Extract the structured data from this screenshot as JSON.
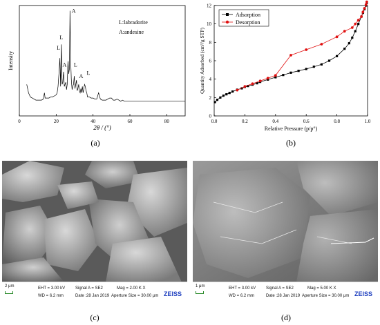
{
  "panel_a": {
    "sublabel": "(a)",
    "legend_line1": "L:labradorite",
    "legend_line2": "A:andesine",
    "peak_labels": [
      "A",
      "L",
      "L",
      "A",
      "L",
      "A",
      "L"
    ]
  },
  "panel_b": {
    "sublabel": "(b)"
  },
  "panel_c": {
    "sublabel": "(c)",
    "scale": "2 μm",
    "eht": "EHT = 3.00 kV",
    "wd": "WD = 6.2 mm",
    "signal": "Signal A = SE2",
    "date": "Date :28 Jan 2019",
    "mag": "Mag = 2.00 K X",
    "aperture": "Aperture Size = 30.00 μm",
    "brand": "ZEISS"
  },
  "panel_d": {
    "sublabel": "(d)",
    "scale": "1 μm",
    "eht": "EHT = 3.00 kV",
    "wd": "WD = 6.2 mm",
    "signal": "Signal A = SE2",
    "date": "Date :28 Jan 2019",
    "mag": "Mag = 5.00 K X",
    "aperture": "Aperture Size = 30.00 μm",
    "brand": "ZEISS"
  },
  "chart_data": [
    {
      "type": "line",
      "title": "",
      "xlabel": "2θ / (°)",
      "ylabel": "Intensity",
      "xlim": [
        0,
        90
      ],
      "x_ticks": [
        "0",
        "20",
        "40",
        "60",
        "80"
      ],
      "grid": false,
      "legend_position": "top-right",
      "series": [
        {
          "x": [
            4,
            5,
            6,
            7,
            8,
            9,
            10,
            11,
            12,
            13,
            13.6,
            14,
            15,
            16,
            17,
            18,
            19,
            20,
            20.5,
            21,
            21.5,
            22,
            22.4,
            22.8,
            23.2,
            23.6,
            24,
            24.4,
            24.8,
            25.2,
            25.6,
            26,
            26.4,
            26.8,
            27.2,
            27.5,
            27.8,
            28.2,
            28.6,
            29,
            29.4,
            29.8,
            30.2,
            30.6,
            31,
            31.4,
            31.8,
            32.2,
            32.6,
            33,
            33.4,
            33.8,
            34.2,
            34.6,
            35,
            35.4,
            35.8,
            36.2,
            36.6,
            37,
            38,
            39,
            40,
            41,
            42,
            43,
            44,
            45,
            46,
            47,
            48,
            49,
            50,
            51,
            52,
            53,
            54,
            55,
            56,
            57,
            58,
            59,
            60,
            62,
            64,
            66,
            68,
            70,
            72,
            74,
            76,
            78,
            80,
            82,
            84,
            86,
            88,
            90
          ],
          "y": [
            30,
            22,
            18,
            17,
            16,
            15,
            15,
            15,
            15,
            16,
            22,
            17,
            17,
            17,
            18,
            18,
            19,
            20,
            22,
            28,
            40,
            55,
            28,
            68,
            30,
            32,
            42,
            28,
            30,
            32,
            25,
            30,
            52,
            40,
            45,
            100,
            58,
            35,
            25,
            28,
            30,
            38,
            26,
            30,
            34,
            24,
            26,
            30,
            24,
            22,
            26,
            22,
            28,
            22,
            26,
            30,
            28,
            24,
            22,
            18,
            18,
            17,
            17,
            16,
            16,
            22,
            16,
            15,
            15,
            15,
            16,
            17,
            17,
            15,
            15,
            16,
            15,
            14,
            15,
            14,
            14,
            14,
            14,
            14,
            14,
            14,
            14,
            14,
            14,
            14,
            14,
            14,
            14,
            14,
            14,
            14,
            14,
            14
          ]
        }
      ]
    },
    {
      "type": "line",
      "title": "",
      "xlabel": "Relative Pressure (p/p°)",
      "ylabel": "Quantity Adsorbed (cm³/g STP)",
      "xlim": [
        0.0,
        1.0
      ],
      "ylim": [
        0,
        12
      ],
      "x_ticks": [
        "0.0",
        "0.2",
        "0.4",
        "0.6",
        "0.8",
        "1.0"
      ],
      "y_ticks": [
        "0",
        "2",
        "4",
        "6",
        "8",
        "10",
        "12"
      ],
      "grid": false,
      "legend_position": "top-left",
      "series": [
        {
          "name": "Adsorption",
          "color": "#000000",
          "marker": "square",
          "x": [
            0.005,
            0.02,
            0.04,
            0.06,
            0.08,
            0.1,
            0.12,
            0.15,
            0.18,
            0.2,
            0.22,
            0.25,
            0.28,
            0.3,
            0.35,
            0.4,
            0.45,
            0.5,
            0.55,
            0.6,
            0.65,
            0.7,
            0.75,
            0.8,
            0.85,
            0.88,
            0.9,
            0.92,
            0.94,
            0.96,
            0.97,
            0.98,
            0.99,
            0.995
          ],
          "y": [
            1.5,
            1.75,
            2.0,
            2.2,
            2.35,
            2.5,
            2.65,
            2.85,
            3.0,
            3.15,
            3.25,
            3.4,
            3.55,
            3.7,
            3.95,
            4.2,
            4.45,
            4.7,
            4.9,
            5.1,
            5.35,
            5.6,
            6.0,
            6.5,
            7.3,
            7.9,
            8.5,
            9.2,
            10.0,
            10.8,
            11.2,
            11.6,
            12.0,
            12.3
          ]
        },
        {
          "name": "Desorption",
          "color": "#e01010",
          "marker": "circle",
          "x": [
            0.995,
            0.99,
            0.98,
            0.97,
            0.96,
            0.94,
            0.92,
            0.9,
            0.85,
            0.8,
            0.7,
            0.6,
            0.5,
            0.4,
            0.35,
            0.3,
            0.25,
            0.2,
            0.15
          ],
          "y": [
            12.4,
            12.1,
            11.7,
            11.3,
            10.8,
            10.4,
            10.0,
            9.6,
            9.2,
            8.6,
            7.8,
            7.2,
            6.6,
            4.4,
            4.1,
            3.8,
            3.5,
            3.2,
            2.8
          ]
        }
      ]
    }
  ]
}
